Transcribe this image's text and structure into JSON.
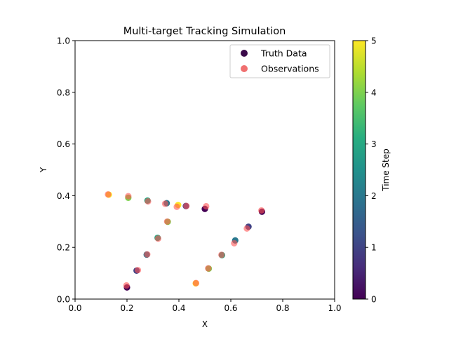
{
  "chart_data": {
    "type": "scatter",
    "title": "Multi-target Tracking Simulation",
    "xlabel": "X",
    "ylabel": "Y",
    "xlim": [
      0,
      1
    ],
    "ylim": [
      0,
      1
    ],
    "xticks": [
      "0.0",
      "0.2",
      "0.4",
      "0.6",
      "0.8",
      "1.0"
    ],
    "yticks": [
      "0.0",
      "0.2",
      "0.4",
      "0.6",
      "0.8",
      "1.0"
    ],
    "legend": {
      "placement": "top-right",
      "entries": [
        "Truth Data",
        "Observations"
      ],
      "truth_swatch_color": "#3b0a4a",
      "obs_swatch_color": "#f07070"
    },
    "colorbar": {
      "label": "Time Step",
      "range": [
        0,
        5
      ],
      "ticks": [
        "0",
        "1",
        "2",
        "3",
        "4",
        "5"
      ],
      "colormap": "viridis"
    },
    "observation_color": "#ff5555",
    "series": [
      {
        "name": "Truth Data",
        "points": [
          {
            "x": 0.2,
            "y": 0.045,
            "t": 0
          },
          {
            "x": 0.237,
            "y": 0.11,
            "t": 1
          },
          {
            "x": 0.276,
            "y": 0.172,
            "t": 2
          },
          {
            "x": 0.318,
            "y": 0.237,
            "t": 3
          },
          {
            "x": 0.357,
            "y": 0.299,
            "t": 4
          },
          {
            "x": 0.397,
            "y": 0.364,
            "t": 5
          },
          {
            "x": 0.72,
            "y": 0.338,
            "t": 0
          },
          {
            "x": 0.668,
            "y": 0.28,
            "t": 1
          },
          {
            "x": 0.617,
            "y": 0.227,
            "t": 2
          },
          {
            "x": 0.566,
            "y": 0.17,
            "t": 3
          },
          {
            "x": 0.515,
            "y": 0.118,
            "t": 4
          },
          {
            "x": 0.465,
            "y": 0.061,
            "t": 5
          },
          {
            "x": 0.5,
            "y": 0.349,
            "t": 0
          },
          {
            "x": 0.427,
            "y": 0.36,
            "t": 1
          },
          {
            "x": 0.353,
            "y": 0.371,
            "t": 2
          },
          {
            "x": 0.279,
            "y": 0.381,
            "t": 3
          },
          {
            "x": 0.205,
            "y": 0.392,
            "t": 4
          },
          {
            "x": 0.13,
            "y": 0.404,
            "t": 5
          }
        ]
      },
      {
        "name": "Observations",
        "points": [
          {
            "x": 0.198,
            "y": 0.053
          },
          {
            "x": 0.242,
            "y": 0.112
          },
          {
            "x": 0.278,
            "y": 0.173
          },
          {
            "x": 0.32,
            "y": 0.234
          },
          {
            "x": 0.355,
            "y": 0.3
          },
          {
            "x": 0.392,
            "y": 0.357
          },
          {
            "x": 0.718,
            "y": 0.343
          },
          {
            "x": 0.662,
            "y": 0.273
          },
          {
            "x": 0.613,
            "y": 0.216
          },
          {
            "x": 0.564,
            "y": 0.171
          },
          {
            "x": 0.513,
            "y": 0.119
          },
          {
            "x": 0.466,
            "y": 0.062
          },
          {
            "x": 0.505,
            "y": 0.359
          },
          {
            "x": 0.429,
            "y": 0.36
          },
          {
            "x": 0.347,
            "y": 0.369
          },
          {
            "x": 0.281,
            "y": 0.378
          },
          {
            "x": 0.205,
            "y": 0.398
          },
          {
            "x": 0.127,
            "y": 0.405
          }
        ]
      }
    ]
  }
}
